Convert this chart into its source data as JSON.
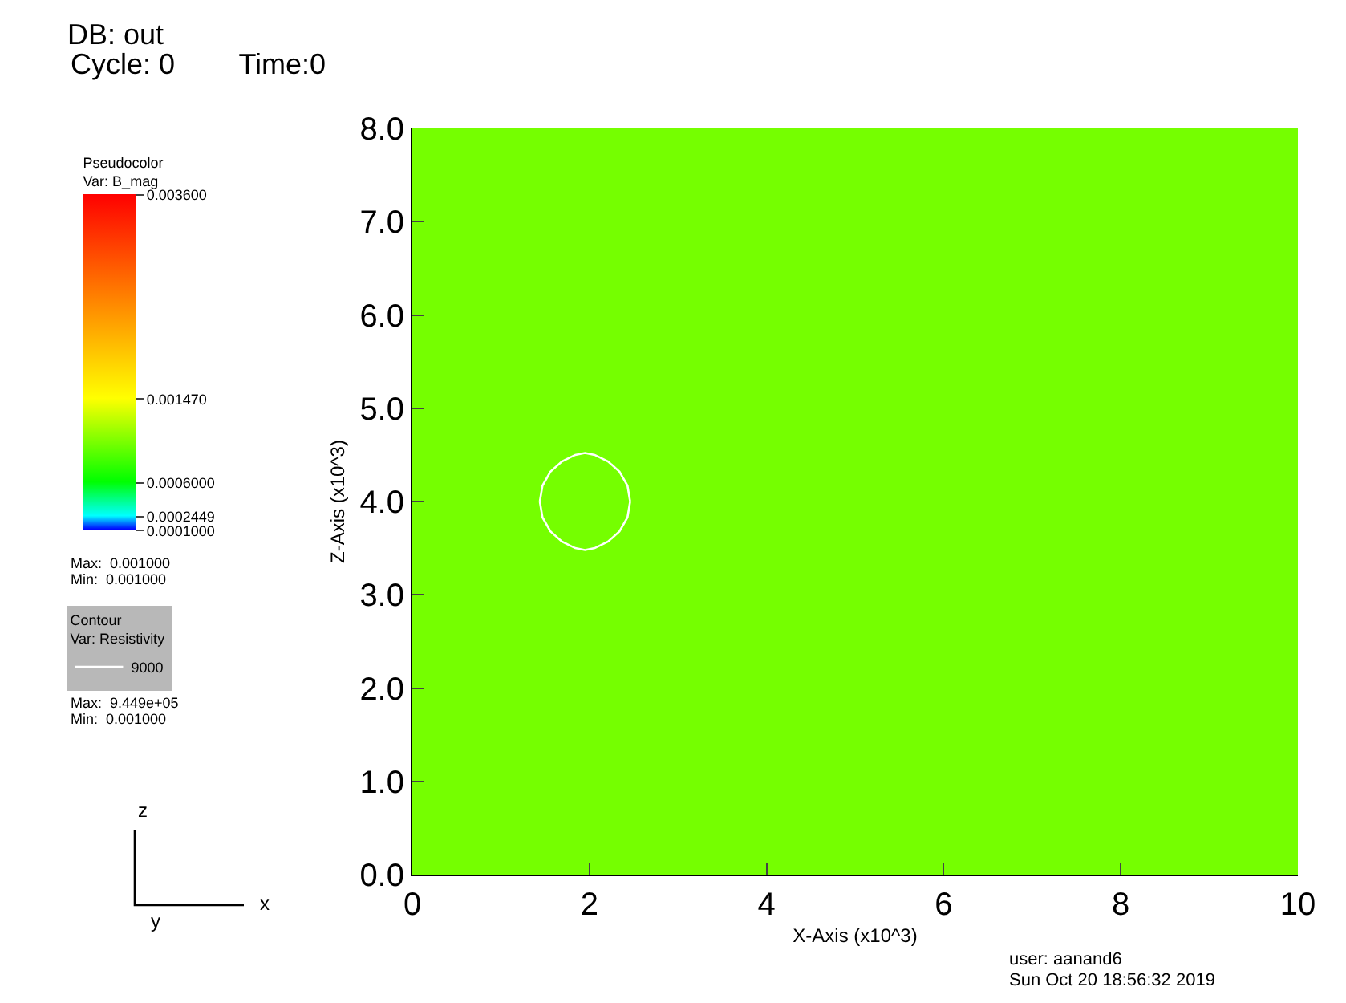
{
  "chart_data": {
    "type": "heatmap",
    "title": "DB: out",
    "subtitle": "Cycle: 0        Time:0",
    "xlabel": "X-Axis (x10^3)",
    "ylabel": "Z-Axis (x10^3)",
    "clabel": "Pseudocolor\nVar: B_mag",
    "legend_title": "Contour\nVar: Resistivity",
    "cells": [
      [
        0.001
      ]
    ],
    "clim": [
      0.0001,
      0.0036
    ],
    "cticks": [
      {
        "value": 0.0001,
        "label": "0.0001000"
      },
      {
        "value": 0.0002449,
        "label": "0.0002449"
      },
      {
        "value": 0.0006,
        "label": "0.0006000"
      },
      {
        "value": 0.00147,
        "label": "0.001470"
      },
      {
        "value": 0.0036,
        "label": "0.003600"
      }
    ],
    "xlim": [
      0,
      10
    ],
    "ylim": [
      0,
      8
    ],
    "xticks": [
      0,
      2,
      4,
      6,
      8,
      10
    ],
    "yticks": [
      {
        "value": 0,
        "label": "0.0"
      },
      {
        "value": 1,
        "label": "1.0"
      },
      {
        "value": 2,
        "label": "2.0"
      },
      {
        "value": 3,
        "label": "3.0"
      },
      {
        "value": 4,
        "label": "4.0"
      },
      {
        "value": 5,
        "label": "5.0"
      },
      {
        "value": 6,
        "label": "6.0"
      },
      {
        "value": 7,
        "label": "7.0"
      },
      {
        "value": 8,
        "label": "8.0"
      }
    ],
    "series": [
      {
        "name": "9000",
        "type": "line",
        "color": "#ffffff",
        "x": [
          1.44,
          1.47,
          1.56,
          1.69,
          1.84,
          1.95,
          2.06,
          2.21,
          2.34,
          2.43,
          2.46,
          null,
          2.46,
          2.43,
          2.34,
          2.21,
          2.06,
          1.95,
          1.84,
          1.69,
          1.56,
          1.47,
          1.44
        ],
        "values": [
          4.0,
          4.17,
          4.32,
          4.43,
          4.5,
          4.52,
          4.5,
          4.43,
          4.32,
          4.17,
          4.0,
          null,
          4.0,
          3.83,
          3.68,
          3.57,
          3.5,
          3.48,
          3.5,
          3.57,
          3.68,
          3.83,
          4.0
        ]
      }
    ],
    "legend": "left",
    "annotations": [
      "Max:  0.001000",
      "Min:  0.001000",
      "Max:  9.449e+05",
      "Min:  0.001000",
      "user: aanand6",
      "Sun Oct 20 18:56:32 2019",
      "z",
      "y",
      "x"
    ]
  }
}
